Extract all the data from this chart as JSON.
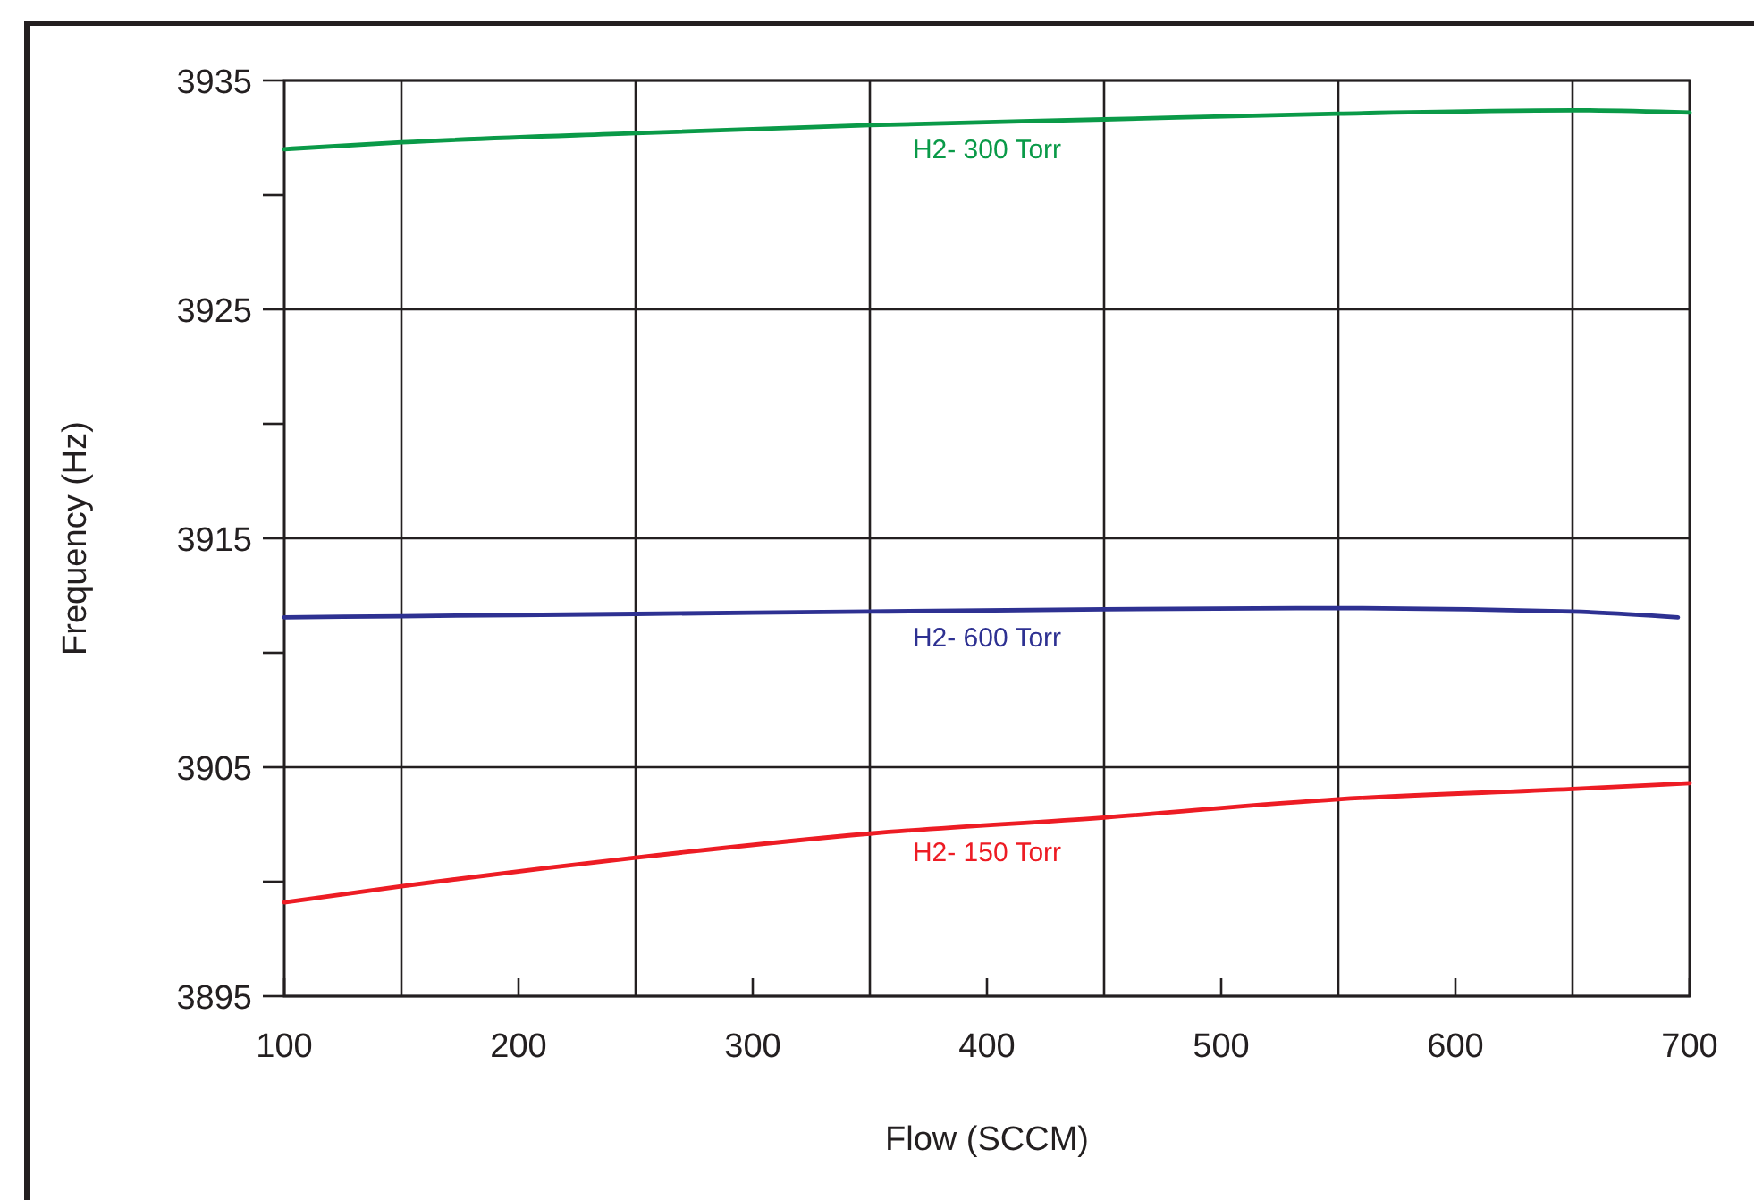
{
  "chart_data": {
    "type": "line",
    "xlabel": "Flow (SCCM)",
    "ylabel": "Frequency (Hz)",
    "xlim": [
      100,
      700
    ],
    "ylim": [
      3895,
      3935
    ],
    "xticks": [
      100,
      {
        "value": 150,
        "label": null
      },
      200,
      {
        "value": 250,
        "label": null
      },
      300,
      {
        "value": 350,
        "label": null
      },
      400,
      {
        "value": 450,
        "label": null
      },
      500,
      {
        "value": 550,
        "label": null
      },
      600,
      {
        "value": 650,
        "label": null
      },
      700
    ],
    "yticks": [
      3895,
      {
        "value": 3900,
        "label": null
      },
      3905,
      {
        "value": 3910,
        "label": null
      },
      3915,
      {
        "value": 3920,
        "label": null
      },
      3925,
      {
        "value": 3930,
        "label": null
      },
      3935
    ],
    "grid": true,
    "marker": "none",
    "line_style": "solid",
    "series": [
      {
        "name": "H2- 300 Torr",
        "color": "#0a9a48",
        "x": [
          100,
          150,
          250,
          350,
          450,
          550,
          650,
          700
        ],
        "values": [
          3932.0,
          3932.3,
          3932.7,
          3933.05,
          3933.3,
          3933.55,
          3933.7,
          3933.6
        ]
      },
      {
        "name": "H2- 600 Torr",
        "color": "#2e3192",
        "x": [
          100,
          150,
          250,
          350,
          450,
          550,
          650,
          695
        ],
        "values": [
          3911.55,
          3911.6,
          3911.7,
          3911.8,
          3911.9,
          3911.95,
          3911.8,
          3911.55
        ]
      },
      {
        "name": "H2- 150 Torr",
        "color": "#ed1c24",
        "x": [
          100,
          150,
          250,
          350,
          450,
          550,
          650,
          700
        ],
        "values": [
          3899.1,
          3899.8,
          3901.05,
          3902.1,
          3902.8,
          3903.6,
          3904.05,
          3904.3
        ]
      }
    ]
  }
}
